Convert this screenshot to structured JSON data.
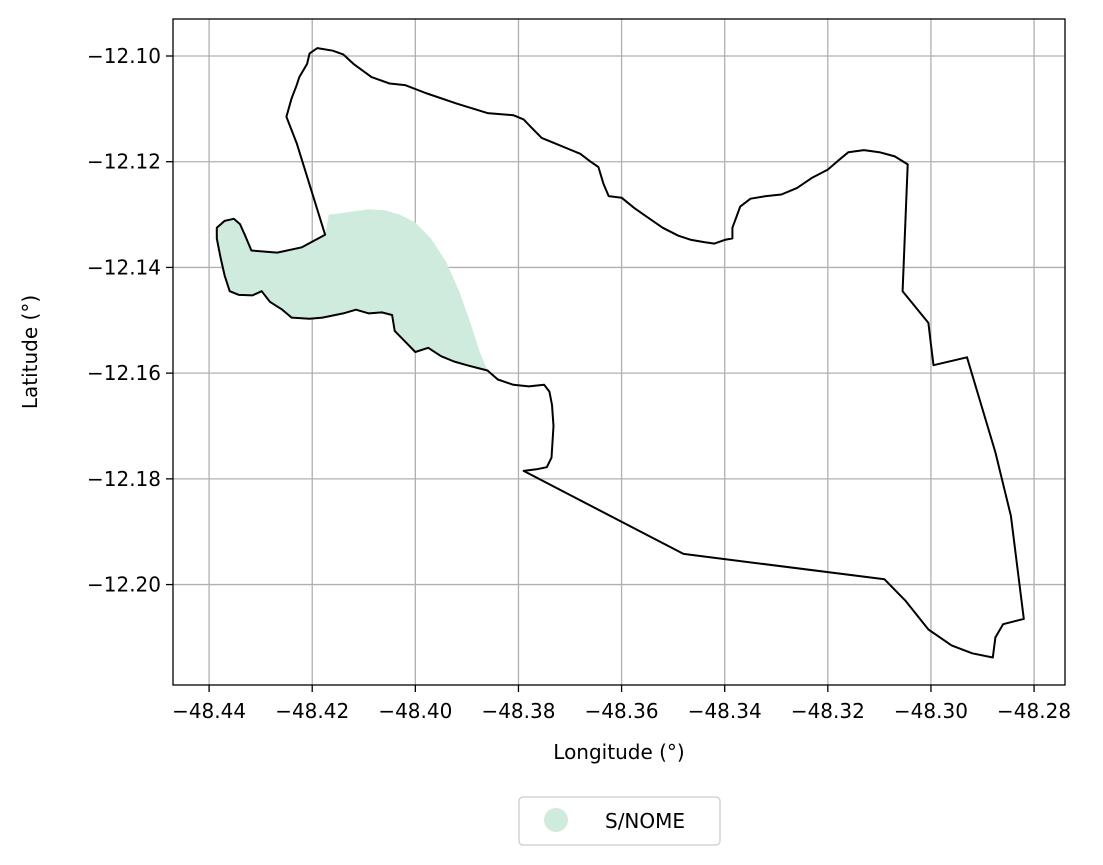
{
  "chart_data": {
    "type": "map",
    "title": "",
    "xlabel": "Longitude (°)",
    "ylabel": "Latitude (°)",
    "xlim": [
      -48.447,
      -48.274
    ],
    "ylim": [
      -12.219,
      -12.093
    ],
    "grid": true,
    "x_ticks": [
      -48.44,
      -48.42,
      -48.4,
      -48.38,
      -48.36,
      -48.34,
      -48.32,
      -48.3,
      -48.28
    ],
    "x_tick_labels": [
      "−48.44",
      "−48.42",
      "−48.40",
      "−48.38",
      "−48.36",
      "−48.34",
      "−48.32",
      "−48.30",
      "−48.28"
    ],
    "y_ticks": [
      -12.1,
      -12.12,
      -12.14,
      -12.16,
      -12.18,
      -12.2
    ],
    "y_tick_labels": [
      "−12.10",
      "−12.12",
      "−12.14",
      "−12.16",
      "−12.18",
      "−12.20"
    ],
    "legend": {
      "placement": "below-center",
      "entries": [
        {
          "label": "S/NOME",
          "color": "#cfebdd",
          "marker": "circle"
        }
      ]
    },
    "layers": [
      {
        "name": "S/NOME",
        "kind": "filled-area",
        "color": "#cfebdd",
        "coords": [
          [
            -48.4385,
            -12.1325
          ],
          [
            -48.437,
            -12.1312
          ],
          [
            -48.4352,
            -12.1308
          ],
          [
            -48.434,
            -12.1318
          ],
          [
            -48.433,
            -12.134
          ],
          [
            -48.4318,
            -12.1368
          ],
          [
            -48.4268,
            -12.1372
          ],
          [
            -48.422,
            -12.1362
          ],
          [
            -48.4175,
            -12.1338
          ],
          [
            -48.4168,
            -12.13
          ],
          [
            -48.415,
            -12.1298
          ],
          [
            -48.412,
            -12.1294
          ],
          [
            -48.409,
            -12.129
          ],
          [
            -48.406,
            -12.1292
          ],
          [
            -48.403,
            -12.13
          ],
          [
            -48.4,
            -12.1315
          ],
          [
            -48.397,
            -12.1345
          ],
          [
            -48.394,
            -12.139
          ],
          [
            -48.3915,
            -12.1445
          ],
          [
            -48.3895,
            -12.15
          ],
          [
            -48.3875,
            -12.156
          ],
          [
            -48.386,
            -12.1595
          ],
          [
            -48.388,
            -12.159
          ],
          [
            -48.39,
            -12.1585
          ],
          [
            -48.3925,
            -12.1578
          ],
          [
            -48.395,
            -12.1568
          ],
          [
            -48.3975,
            -12.1552
          ],
          [
            -48.4,
            -12.156
          ],
          [
            -48.402,
            -12.154
          ],
          [
            -48.404,
            -12.152
          ],
          [
            -48.4045,
            -12.149
          ],
          [
            -48.4065,
            -12.1485
          ],
          [
            -48.409,
            -12.1487
          ],
          [
            -48.4115,
            -12.148
          ],
          [
            -48.414,
            -12.1487
          ],
          [
            -48.418,
            -12.1495
          ],
          [
            -48.4205,
            -12.1497
          ],
          [
            -48.424,
            -12.1495
          ],
          [
            -48.4258,
            -12.148
          ],
          [
            -48.4282,
            -12.1465
          ],
          [
            -48.4298,
            -12.1445
          ],
          [
            -48.4316,
            -12.1453
          ],
          [
            -48.4342,
            -12.1452
          ],
          [
            -48.436,
            -12.1445
          ],
          [
            -48.437,
            -12.1415
          ],
          [
            -48.4378,
            -12.138
          ],
          [
            -48.4385,
            -12.1345
          ]
        ]
      },
      {
        "name": "boundary",
        "kind": "outline",
        "color": "#000000",
        "coords": [
          [
            -48.4175,
            -12.1338
          ],
          [
            -48.422,
            -12.1362
          ],
          [
            -48.4268,
            -12.1372
          ],
          [
            -48.4318,
            -12.1368
          ],
          [
            -48.433,
            -12.134
          ],
          [
            -48.434,
            -12.1318
          ],
          [
            -48.4352,
            -12.1308
          ],
          [
            -48.437,
            -12.1312
          ],
          [
            -48.4385,
            -12.1325
          ],
          [
            -48.4385,
            -12.1345
          ],
          [
            -48.4378,
            -12.138
          ],
          [
            -48.437,
            -12.1415
          ],
          [
            -48.436,
            -12.1445
          ],
          [
            -48.4342,
            -12.1452
          ],
          [
            -48.4316,
            -12.1453
          ],
          [
            -48.4298,
            -12.1445
          ],
          [
            -48.4282,
            -12.1465
          ],
          [
            -48.4258,
            -12.148
          ],
          [
            -48.424,
            -12.1495
          ],
          [
            -48.4205,
            -12.1497
          ],
          [
            -48.418,
            -12.1495
          ],
          [
            -48.414,
            -12.1487
          ],
          [
            -48.4115,
            -12.148
          ],
          [
            -48.409,
            -12.1487
          ],
          [
            -48.4065,
            -12.1485
          ],
          [
            -48.4045,
            -12.149
          ],
          [
            -48.404,
            -12.152
          ],
          [
            -48.402,
            -12.154
          ],
          [
            -48.4,
            -12.156
          ],
          [
            -48.3975,
            -12.1552
          ],
          [
            -48.395,
            -12.1568
          ],
          [
            -48.3925,
            -12.1578
          ],
          [
            -48.39,
            -12.1585
          ],
          [
            -48.388,
            -12.159
          ],
          [
            -48.386,
            -12.1595
          ],
          [
            -48.384,
            -12.1612
          ],
          [
            -48.381,
            -12.1622
          ],
          [
            -48.378,
            -12.1625
          ],
          [
            -48.375,
            -12.1622
          ],
          [
            -48.374,
            -12.1635
          ],
          [
            -48.3735,
            -12.166
          ],
          [
            -48.3732,
            -12.17
          ],
          [
            -48.3734,
            -12.173
          ],
          [
            -48.3736,
            -12.176
          ],
          [
            -48.3745,
            -12.1778
          ],
          [
            -48.3765,
            -12.1782
          ],
          [
            -48.379,
            -12.1785
          ],
          [
            -48.348,
            -12.1942
          ],
          [
            -48.309,
            -12.199
          ],
          [
            -48.305,
            -12.203
          ],
          [
            -48.3005,
            -12.2085
          ],
          [
            -48.296,
            -12.2115
          ],
          [
            -48.292,
            -12.213
          ],
          [
            -48.288,
            -12.2138
          ],
          [
            -48.2875,
            -12.21
          ],
          [
            -48.286,
            -12.2075
          ],
          [
            -48.282,
            -12.2065
          ],
          [
            -48.2845,
            -12.187
          ],
          [
            -48.2875,
            -12.175
          ],
          [
            -48.293,
            -12.157
          ],
          [
            -48.2995,
            -12.1585
          ],
          [
            -48.3,
            -12.1545
          ],
          [
            -48.3005,
            -12.1505
          ],
          [
            -48.3055,
            -12.1445
          ],
          [
            -48.3045,
            -12.1205
          ],
          [
            -48.307,
            -12.119
          ],
          [
            -48.31,
            -12.1182
          ],
          [
            -48.313,
            -12.1178
          ],
          [
            -48.316,
            -12.1182
          ],
          [
            -48.318,
            -12.1198
          ],
          [
            -48.32,
            -12.1215
          ],
          [
            -48.323,
            -12.123
          ],
          [
            -48.326,
            -12.125
          ],
          [
            -48.329,
            -12.1262
          ],
          [
            -48.332,
            -12.1265
          ],
          [
            -48.335,
            -12.127
          ],
          [
            -48.337,
            -12.1285
          ],
          [
            -48.3385,
            -12.1325
          ],
          [
            -48.3385,
            -12.1345
          ],
          [
            -48.34,
            -12.1348
          ],
          [
            -48.342,
            -12.1355
          ],
          [
            -48.344,
            -12.1352
          ],
          [
            -48.3465,
            -12.1348
          ],
          [
            -48.349,
            -12.134
          ],
          [
            -48.352,
            -12.1325
          ],
          [
            -48.355,
            -12.1305
          ],
          [
            -48.3575,
            -12.1288
          ],
          [
            -48.36,
            -12.1268
          ],
          [
            -48.3625,
            -12.1265
          ],
          [
            -48.3635,
            -12.1242
          ],
          [
            -48.3645,
            -12.121
          ],
          [
            -48.366,
            -12.12
          ],
          [
            -48.368,
            -12.1185
          ],
          [
            -48.3705,
            -12.1175
          ],
          [
            -48.373,
            -12.1165
          ],
          [
            -48.3755,
            -12.1155
          ],
          [
            -48.3775,
            -12.1135
          ],
          [
            -48.379,
            -12.112
          ],
          [
            -48.381,
            -12.1112
          ],
          [
            -48.386,
            -12.1108
          ],
          [
            -48.392,
            -12.109
          ],
          [
            -48.398,
            -12.107
          ],
          [
            -48.402,
            -12.1055
          ],
          [
            -48.405,
            -12.1052
          ],
          [
            -48.4085,
            -12.104
          ],
          [
            -48.412,
            -12.1015
          ],
          [
            -48.414,
            -12.0997
          ],
          [
            -48.416,
            -12.099
          ],
          [
            -48.419,
            -12.0985
          ],
          [
            -48.4205,
            -12.0995
          ],
          [
            -48.421,
            -12.1015
          ],
          [
            -48.4225,
            -12.104
          ],
          [
            -48.423,
            -12.1055
          ],
          [
            -48.424,
            -12.108
          ],
          [
            -48.425,
            -12.1115
          ],
          [
            -48.423,
            -12.1165
          ],
          [
            -48.4175,
            -12.1338
          ]
        ]
      }
    ]
  }
}
